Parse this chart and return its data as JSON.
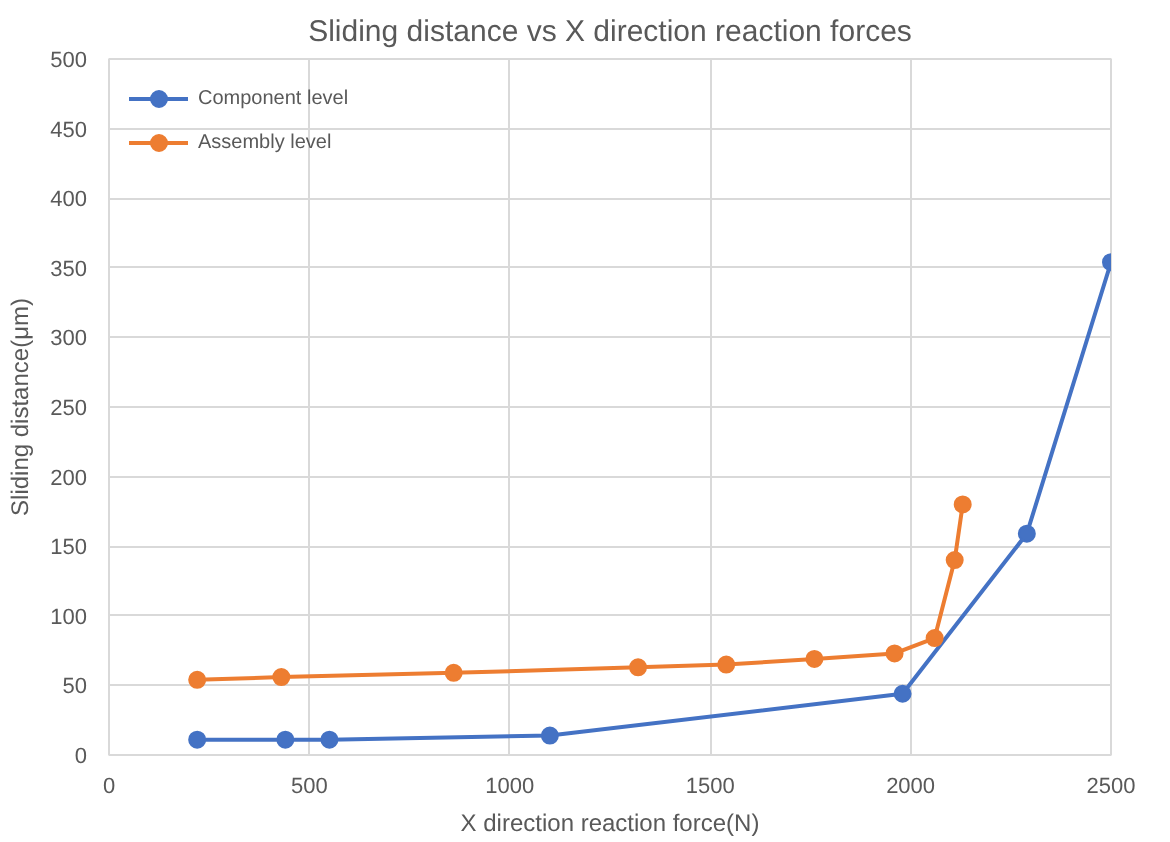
{
  "chart_data": {
    "type": "line",
    "title": "Sliding distance vs X direction reaction forces",
    "xlabel": "X direction reaction force(N)",
    "ylabel": "Sliding distance(μm)",
    "xlim": [
      0,
      2500
    ],
    "xticks": [
      0,
      500,
      1000,
      1500,
      2000,
      2500
    ],
    "ylim": [
      0,
      500
    ],
    "yticks": [
      0,
      50,
      100,
      150,
      200,
      250,
      300,
      350,
      400,
      450,
      500
    ],
    "grid": true,
    "legend": "top left",
    "marker": "circle",
    "line_style": "solid",
    "series": [
      {
        "name": "Component level",
        "color": "#4472c4",
        "x": [
          220,
          440,
          550,
          1100,
          1980,
          2290,
          2500
        ],
        "values": [
          11,
          11,
          11,
          14,
          44,
          159,
          354
        ]
      },
      {
        "name": "Assembly level",
        "color": "#ed7d31",
        "x": [
          220,
          430,
          860,
          1320,
          1540,
          1760,
          1960,
          2060,
          2110,
          2130
        ],
        "values": [
          54,
          56,
          59,
          63,
          65,
          69,
          73,
          84,
          140,
          180
        ]
      }
    ]
  }
}
